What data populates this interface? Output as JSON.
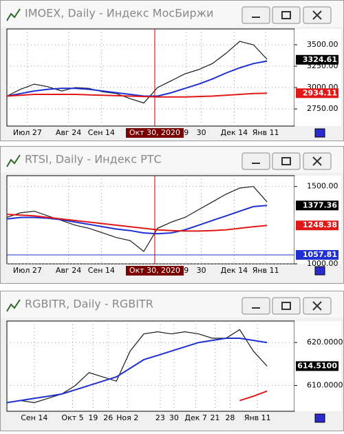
{
  "chart_data": [
    {
      "type": "line",
      "title": "IMOEX, Daily - Индекс МосБиржи",
      "xlim": [
        0,
        21
      ],
      "ylim": [
        2550,
        3685
      ],
      "yticks": [
        {
          "value": 3500,
          "label": "3500.00"
        },
        {
          "value": 3250,
          "label": "3250.00"
        },
        {
          "value": 3000,
          "label": "3000.00"
        },
        {
          "value": 2750,
          "label": "2750.00"
        }
      ],
      "xticks": [
        {
          "value": 1.5,
          "label": "Июл 27"
        },
        {
          "value": 4.5,
          "label": "Авг 24"
        },
        {
          "value": 6.9,
          "label": "Сен 14"
        },
        {
          "value": 13.1,
          "label": "9"
        },
        {
          "value": 14.2,
          "label": "30"
        },
        {
          "value": 16.6,
          "label": "Дек 14"
        },
        {
          "value": 18.9,
          "label": "Янв 11"
        }
      ],
      "crosshair": {
        "value": 10.8,
        "label": "Окт 30, 2020"
      },
      "grid": true,
      "series": [
        {
          "color": "#1a1a1a",
          "values": [
            2900,
            2980,
            3040,
            3010,
            2960,
            3000,
            2990,
            2950,
            2930,
            2870,
            2820,
            3000,
            3080,
            3160,
            3210,
            3280,
            3400,
            3540,
            3500,
            3330
          ]
        },
        {
          "color": "#1f2fd0",
          "values": [
            2900,
            2930,
            2960,
            2980,
            2990,
            2990,
            2980,
            2960,
            2940,
            2920,
            2900,
            2900,
            2940,
            2990,
            3040,
            3100,
            3170,
            3230,
            3280,
            3310
          ]
        },
        {
          "color": "#e01818",
          "values": [
            2900,
            2910,
            2920,
            2920,
            2920,
            2920,
            2915,
            2910,
            2905,
            2900,
            2895,
            2890,
            2890,
            2890,
            2895,
            2900,
            2910,
            2920,
            2930,
            2934
          ]
        }
      ],
      "markers": [
        {
          "value": 3324.61,
          "color": "#000000"
        },
        {
          "value": 2934.11,
          "color": "#e01818"
        }
      ]
    },
    {
      "type": "line",
      "title": "RTSI, Daily - Индекс РТС",
      "xlim": [
        0,
        21
      ],
      "ylim": [
        1000,
        1570
      ],
      "yticks": [
        {
          "value": 1500,
          "label": "1500.00"
        },
        {
          "value": 1000,
          "label": "1000.00"
        }
      ],
      "xticks": [
        {
          "value": 1.5,
          "label": "Июл 27"
        },
        {
          "value": 4.5,
          "label": "Авг 24"
        },
        {
          "value": 6.9,
          "label": "Сен 14"
        },
        {
          "value": 13.1,
          "label": "9"
        },
        {
          "value": 14.2,
          "label": "30"
        },
        {
          "value": 16.6,
          "label": "Дек 14"
        },
        {
          "value": 18.9,
          "label": "Янв 11"
        }
      ],
      "crosshair": {
        "value": 10.8,
        "label": "Окт 30, 2020"
      },
      "grid": true,
      "series": [
        {
          "color": "#1a1a1a",
          "values": [
            1300,
            1330,
            1340,
            1310,
            1280,
            1250,
            1230,
            1200,
            1170,
            1150,
            1080,
            1230,
            1270,
            1300,
            1350,
            1400,
            1450,
            1490,
            1500,
            1400
          ]
        },
        {
          "color": "#1f2fd0",
          "values": [
            1290,
            1300,
            1300,
            1295,
            1285,
            1270,
            1255,
            1240,
            1225,
            1215,
            1200,
            1195,
            1200,
            1220,
            1250,
            1280,
            1310,
            1340,
            1370,
            1377
          ]
        },
        {
          "color": "#e01818",
          "values": [
            1320,
            1315,
            1310,
            1300,
            1290,
            1280,
            1270,
            1260,
            1250,
            1240,
            1230,
            1220,
            1215,
            1212,
            1212,
            1215,
            1220,
            1230,
            1240,
            1248
          ]
        }
      ],
      "markers": [
        {
          "value": 1377.36,
          "color": "#000000"
        },
        {
          "value": 1248.38,
          "color": "#e01818"
        },
        {
          "value": 1057.81,
          "color": "#1f2fd0",
          "line": true
        }
      ]
    },
    {
      "type": "line",
      "title": "RGBITR, Daily - RGBITR",
      "xlim": [
        0,
        21
      ],
      "ylim": [
        604,
        625
      ],
      "yticks": [
        {
          "value": 620,
          "label": "620.0000"
        },
        {
          "value": 610,
          "label": "610.0000"
        }
      ],
      "xticks": [
        {
          "value": 2.0,
          "label": "Сен 14"
        },
        {
          "value": 4.8,
          "label": "Окт 5"
        },
        {
          "value": 6.3,
          "label": "19"
        },
        {
          "value": 7.4,
          "label": "26"
        },
        {
          "value": 8.8,
          "label": "Ноя 2"
        },
        {
          "value": 11.2,
          "label": "23"
        },
        {
          "value": 12.2,
          "label": "30"
        },
        {
          "value": 13.8,
          "label": "Дек 7"
        },
        {
          "value": 15.2,
          "label": "21"
        },
        {
          "value": 16.3,
          "label": "28"
        },
        {
          "value": 18.3,
          "label": "Янв 11"
        }
      ],
      "grid": true,
      "series": [
        {
          "color": "#1a1a1a",
          "values": [
            606,
            606.5,
            606,
            607,
            608,
            610,
            613,
            612,
            611,
            618,
            622,
            622.5,
            622,
            622.5,
            622,
            621,
            621,
            623,
            618,
            614.5
          ]
        },
        {
          "color": "#1f2fd0",
          "values": [
            606,
            606.5,
            607,
            607.5,
            608,
            609,
            610,
            611,
            612,
            614,
            616,
            617,
            618,
            619,
            620,
            620.5,
            621,
            621,
            620.5,
            620
          ]
        },
        {
          "color": "#e01818",
          "values": [
            null,
            null,
            null,
            null,
            null,
            null,
            null,
            null,
            null,
            null,
            null,
            null,
            null,
            null,
            null,
            null,
            null,
            606.5,
            607.5,
            608.7
          ]
        }
      ],
      "markers": [
        {
          "value": 614.51,
          "label": "614.5100",
          "color": "#000000"
        }
      ]
    }
  ]
}
